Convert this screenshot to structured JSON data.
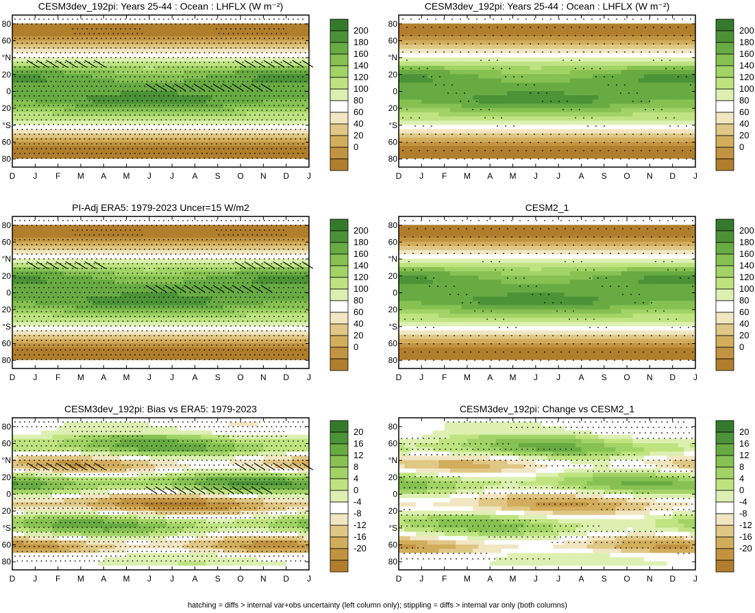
{
  "footnote": "hatching = diffs > internal var+obs uncertainty (left column only); stippling = diffs > internal var only (both columns)",
  "months": [
    "D",
    "J",
    "F",
    "M",
    "A",
    "M",
    "J",
    "J",
    "A",
    "S",
    "O",
    "N",
    "D",
    "J"
  ],
  "lat_labels": [
    "80",
    "60",
    "°N",
    "20",
    "0",
    "20",
    "°S",
    "60",
    "80"
  ],
  "chart_data": [
    {
      "type": "heatmap",
      "title": "CESM3dev_192pi: Years 25-44 : Ocean : LHFLX (W m⁻²)",
      "x_tick_labels": [
        "D",
        "J",
        "F",
        "M",
        "A",
        "M",
        "J",
        "J",
        "A",
        "S",
        "O",
        "N",
        "D",
        "J"
      ],
      "y_tick_labels": [
        "80",
        "60",
        "°N",
        "20",
        "0",
        "20",
        "°S",
        "60",
        "80"
      ],
      "colorbar": {
        "levels": [
          0,
          20,
          40,
          60,
          80,
          100,
          120,
          140,
          160,
          180,
          200
        ],
        "labels": [
          "200",
          "180",
          "160",
          "140",
          "120",
          "100",
          "80",
          "60",
          "40",
          "20",
          "0"
        ]
      },
      "field": "lhflx",
      "stipple": "heavy",
      "hatch": true
    },
    {
      "type": "heatmap",
      "title": "CESM3dev_192pi: Years 25-44 : Ocean : LHFLX (W m⁻²)",
      "x_tick_labels": [
        "D",
        "J",
        "F",
        "M",
        "A",
        "M",
        "J",
        "J",
        "A",
        "S",
        "O",
        "N",
        "D",
        "J"
      ],
      "y_tick_labels": [
        "80",
        "60",
        "°N",
        "20",
        "0",
        "20",
        "°S",
        "60",
        "80"
      ],
      "colorbar": {
        "levels": [
          0,
          20,
          40,
          60,
          80,
          100,
          120,
          140,
          160,
          180,
          200
        ],
        "labels": [
          "200",
          "180",
          "160",
          "140",
          "120",
          "100",
          "80",
          "60",
          "40",
          "20",
          "0"
        ]
      },
      "field": "lhflx",
      "stipple": "light",
      "hatch": false
    },
    {
      "type": "heatmap",
      "title": "PI-Adj ERA5: 1979-2023 Uncer=15 W/m2",
      "x_tick_labels": [
        "D",
        "J",
        "F",
        "M",
        "A",
        "M",
        "J",
        "J",
        "A",
        "S",
        "O",
        "N",
        "D",
        "J"
      ],
      "y_tick_labels": [
        "80",
        "60",
        "°N",
        "20",
        "0",
        "20",
        "°S",
        "60",
        "80"
      ],
      "colorbar": {
        "levels": [
          0,
          20,
          40,
          60,
          80,
          100,
          120,
          140,
          160,
          180,
          200
        ],
        "labels": [
          "200",
          "180",
          "160",
          "140",
          "120",
          "100",
          "80",
          "60",
          "40",
          "20",
          "0"
        ]
      },
      "field": "lhflx",
      "stipple": "heavy",
      "hatch": true
    },
    {
      "type": "heatmap",
      "title": "CESM2_1",
      "x_tick_labels": [
        "D",
        "J",
        "F",
        "M",
        "A",
        "M",
        "J",
        "J",
        "A",
        "S",
        "O",
        "N",
        "D",
        "J"
      ],
      "y_tick_labels": [
        "80",
        "60",
        "°N",
        "20",
        "0",
        "20",
        "°S",
        "60",
        "80"
      ],
      "colorbar": {
        "levels": [
          0,
          20,
          40,
          60,
          80,
          100,
          120,
          140,
          160,
          180,
          200
        ],
        "labels": [
          "200",
          "180",
          "160",
          "140",
          "120",
          "100",
          "80",
          "60",
          "40",
          "20",
          "0"
        ]
      },
      "field": "lhflx",
      "stipple": "light",
      "hatch": false
    },
    {
      "type": "heatmap",
      "title": "CESM3dev_192pi: Bias vs ERA5: 1979-2023",
      "x_tick_labels": [
        "D",
        "J",
        "F",
        "M",
        "A",
        "M",
        "J",
        "J",
        "A",
        "S",
        "O",
        "N",
        "D",
        "J"
      ],
      "y_tick_labels": [
        "80",
        "60",
        "°N",
        "20",
        "0",
        "20",
        "°S",
        "60",
        "80"
      ],
      "colorbar": {
        "levels": [
          -20,
          -16,
          -12,
          -8,
          -4,
          0,
          4,
          8,
          12,
          16,
          20
        ],
        "labels": [
          "20",
          "16",
          "12",
          "8",
          "4",
          "0",
          "-4",
          "-8",
          "-12",
          "-16",
          "-20"
        ]
      },
      "field": "bias",
      "stipple": "heavy",
      "hatch": true
    },
    {
      "type": "heatmap",
      "title": "CESM3dev_192pi: Change vs CESM2_1",
      "x_tick_labels": [
        "D",
        "J",
        "F",
        "M",
        "A",
        "M",
        "J",
        "J",
        "A",
        "S",
        "O",
        "N",
        "D",
        "J"
      ],
      "y_tick_labels": [
        "80",
        "60",
        "°N",
        "20",
        "0",
        "20",
        "°S",
        "60",
        "80"
      ],
      "colorbar": {
        "levels": [
          -20,
          -16,
          -12,
          -8,
          -4,
          0,
          4,
          8,
          12,
          16,
          20
        ],
        "labels": [
          "20",
          "16",
          "12",
          "8",
          "4",
          "0",
          "-4",
          "-8",
          "-12",
          "-16",
          "-20"
        ]
      },
      "field": "change",
      "stipple": "medium",
      "hatch": false
    }
  ],
  "colors": {
    "scale": [
      "#9a6a22",
      "#b07e2c",
      "#c29441",
      "#d2ad5c",
      "#e0c786",
      "#f1e6c2",
      "#ffffff",
      "#ddf0b2",
      "#bfe380",
      "#a2d366",
      "#86c152",
      "#68ab43",
      "#4c9237",
      "#357a2c"
    ]
  }
}
